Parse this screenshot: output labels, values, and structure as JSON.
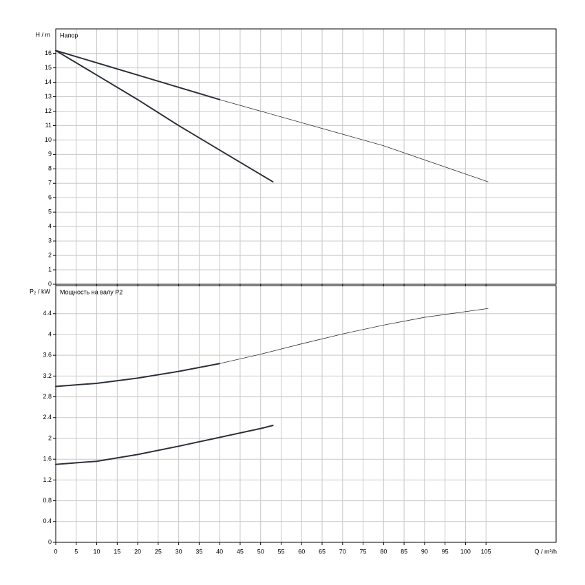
{
  "chart_data": [
    {
      "type": "line",
      "title": "Напор",
      "y_label": "H / m",
      "xlim": [
        0,
        122.1
      ],
      "xticks": [
        0,
        5,
        10,
        15,
        20,
        25,
        30,
        35,
        40,
        45,
        50,
        55,
        60,
        65,
        70,
        75,
        80,
        85,
        90,
        95,
        100,
        105
      ],
      "ylim": [
        0,
        17.7
      ],
      "yticks": [
        0,
        1,
        2,
        3,
        4,
        5,
        6,
        7,
        8,
        9,
        10,
        11,
        12,
        13,
        14,
        15,
        16
      ],
      "grid": true,
      "series": [
        {
          "color": "#2b2f38",
          "width": 2,
          "x": [
            0,
            10,
            20,
            30,
            40,
            53
          ],
          "values": [
            16.2,
            14.5,
            12.8,
            11.0,
            9.3,
            7.1
          ]
        },
        {
          "color": "#2b2f38",
          "width": 2,
          "x": [
            0,
            20,
            40
          ],
          "values": [
            16.2,
            14.5,
            12.8
          ]
        },
        {
          "color": "#2b2f38",
          "width": 0.8,
          "x": [
            40,
            60,
            80,
            105.5
          ],
          "values": [
            12.8,
            11.2,
            9.6,
            7.1
          ]
        }
      ]
    },
    {
      "type": "line",
      "title": "Мощность на валу P2",
      "y_label": "P₂ / kW",
      "x_label": "Q / m³/h",
      "xlim": [
        0,
        122.1
      ],
      "xticks": [
        0,
        5,
        10,
        15,
        20,
        25,
        30,
        35,
        40,
        45,
        50,
        55,
        60,
        65,
        70,
        75,
        80,
        85,
        90,
        95,
        100,
        105
      ],
      "ylim": [
        0,
        4.94
      ],
      "yticks": [
        0,
        0.4,
        0.8,
        1.2,
        1.6,
        2,
        2.4,
        2.8,
        3.2,
        3.6,
        4,
        4.4
      ],
      "grid": true,
      "series": [
        {
          "color": "#2b2f38",
          "width": 2,
          "x": [
            0,
            10,
            20,
            30,
            40,
            50,
            53
          ],
          "values": [
            1.5,
            1.56,
            1.69,
            1.85,
            2.02,
            2.19,
            2.25
          ]
        },
        {
          "color": "#2b2f38",
          "width": 2,
          "x": [
            0,
            10,
            20,
            30,
            40
          ],
          "values": [
            3.0,
            3.06,
            3.16,
            3.29,
            3.44
          ]
        },
        {
          "color": "#2b2f38",
          "width": 0.8,
          "x": [
            40,
            50,
            60,
            70,
            80,
            90,
            105.5
          ],
          "values": [
            3.44,
            3.62,
            3.82,
            4.01,
            4.18,
            4.33,
            4.5
          ]
        }
      ]
    }
  ]
}
